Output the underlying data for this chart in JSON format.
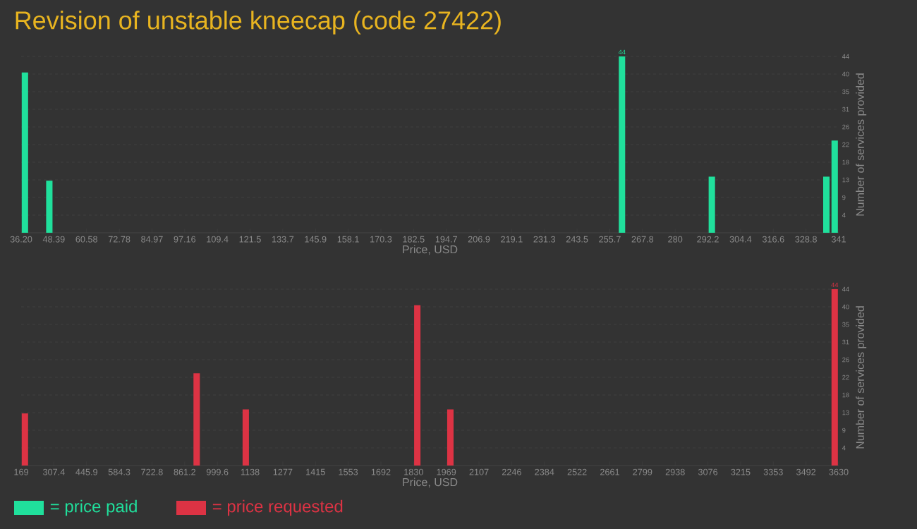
{
  "chart_data": [
    {
      "type": "bar",
      "title": "Revision of unstable kneecap (code 27422)",
      "xlabel": "Price, USD",
      "ylabel": "Number of services provided",
      "x": [
        37.6,
        46.7,
        260.2,
        293.7,
        336.4,
        339.5
      ],
      "series": [
        {
          "name": "= price paid",
          "color": "#20e09c",
          "values": [
            40,
            13,
            44,
            14,
            14,
            23
          ],
          "value_labels": [
            null,
            null,
            "44",
            null,
            null,
            null
          ]
        }
      ],
      "xlim": [
        36.2,
        341
      ],
      "xticks": [
        {
          "value": 36.2,
          "label": "36.20"
        },
        {
          "value": 48.39,
          "label": "48.39"
        },
        {
          "value": 60.58,
          "label": "60.58"
        },
        {
          "value": 72.78,
          "label": "72.78"
        },
        {
          "value": 84.97,
          "label": "84.97"
        },
        {
          "value": 97.16,
          "label": "97.16"
        },
        {
          "value": 109.35,
          "label": "109.4"
        },
        {
          "value": 121.54,
          "label": "121.5"
        },
        {
          "value": 133.74,
          "label": "133.7"
        },
        {
          "value": 145.93,
          "label": "145.9"
        },
        {
          "value": 158.12,
          "label": "158.1"
        },
        {
          "value": 170.31,
          "label": "170.3"
        },
        {
          "value": 182.5,
          "label": "182.5"
        },
        {
          "value": 194.7,
          "label": "194.7"
        },
        {
          "value": 206.89,
          "label": "206.9"
        },
        {
          "value": 219.08,
          "label": "219.1"
        },
        {
          "value": 231.27,
          "label": "231.3"
        },
        {
          "value": 243.46,
          "label": "243.5"
        },
        {
          "value": 255.66,
          "label": "255.7"
        },
        {
          "value": 267.85,
          "label": "267.8"
        },
        {
          "value": 280.04,
          "label": "280"
        },
        {
          "value": 292.23,
          "label": "292.2"
        },
        {
          "value": 304.42,
          "label": "304.4"
        },
        {
          "value": 316.62,
          "label": "316.6"
        },
        {
          "value": 328.81,
          "label": "328.8"
        },
        {
          "value": 341,
          "label": "341"
        }
      ],
      "ylim": [
        0,
        44
      ],
      "yticks": [
        {
          "value": 4.4,
          "label": "4"
        },
        {
          "value": 8.8,
          "label": "9"
        },
        {
          "value": 13.2,
          "label": "13"
        },
        {
          "value": 17.6,
          "label": "18"
        },
        22,
        {
          "value": 26.4,
          "label": "26"
        },
        {
          "value": 30.8,
          "label": "31"
        },
        {
          "value": 35.2,
          "label": "35"
        },
        {
          "value": 39.6,
          "label": "40"
        },
        44
      ],
      "grid": "y",
      "legend": "bottom left"
    },
    {
      "type": "bar",
      "xlabel": "Price, USD",
      "ylabel": "Number of services provided",
      "x": [
        184.8,
        912,
        1119.8,
        1846,
        1986,
        3613
      ],
      "series": [
        {
          "name": "= price requested",
          "color": "#dd3344",
          "values": [
            13,
            23,
            14,
            40,
            14,
            44
          ],
          "value_labels": [
            null,
            null,
            null,
            null,
            null,
            "44"
          ]
        }
      ],
      "xlim": [
        169,
        3630
      ],
      "xticks": [
        169,
        {
          "value": 307.44,
          "label": "307.4"
        },
        {
          "value": 445.88,
          "label": "445.9"
        },
        {
          "value": 584.32,
          "label": "584.3"
        },
        {
          "value": 722.76,
          "label": "722.8"
        },
        {
          "value": 861.2,
          "label": "861.2"
        },
        {
          "value": 999.64,
          "label": "999.6"
        },
        {
          "value": 1138.08,
          "label": "1138"
        },
        {
          "value": 1276.52,
          "label": "1277"
        },
        {
          "value": 1414.96,
          "label": "1415"
        },
        {
          "value": 1553.4,
          "label": "1553"
        },
        {
          "value": 1691.84,
          "label": "1692"
        },
        {
          "value": 1830.28,
          "label": "1830"
        },
        {
          "value": 1968.72,
          "label": "1969"
        },
        {
          "value": 2107.16,
          "label": "2107"
        },
        {
          "value": 2245.6,
          "label": "2246"
        },
        {
          "value": 2384.04,
          "label": "2384"
        },
        {
          "value": 2522.48,
          "label": "2522"
        },
        {
          "value": 2660.92,
          "label": "2661"
        },
        {
          "value": 2799.36,
          "label": "2799"
        },
        {
          "value": 2937.8,
          "label": "2938"
        },
        {
          "value": 3076.24,
          "label": "3076"
        },
        {
          "value": 3214.68,
          "label": "3215"
        },
        {
          "value": 3353.12,
          "label": "3353"
        },
        {
          "value": 3491.56,
          "label": "3492"
        },
        3630
      ],
      "ylim": [
        0,
        44
      ],
      "yticks": [
        {
          "value": 4.4,
          "label": "4"
        },
        {
          "value": 8.8,
          "label": "9"
        },
        {
          "value": 13.2,
          "label": "13"
        },
        {
          "value": 17.6,
          "label": "18"
        },
        22,
        {
          "value": 26.4,
          "label": "26"
        },
        {
          "value": 30.8,
          "label": "31"
        },
        {
          "value": 35.2,
          "label": "35"
        },
        {
          "value": 39.6,
          "label": "40"
        },
        44
      ],
      "grid": "y",
      "legend": "bottom left"
    }
  ]
}
